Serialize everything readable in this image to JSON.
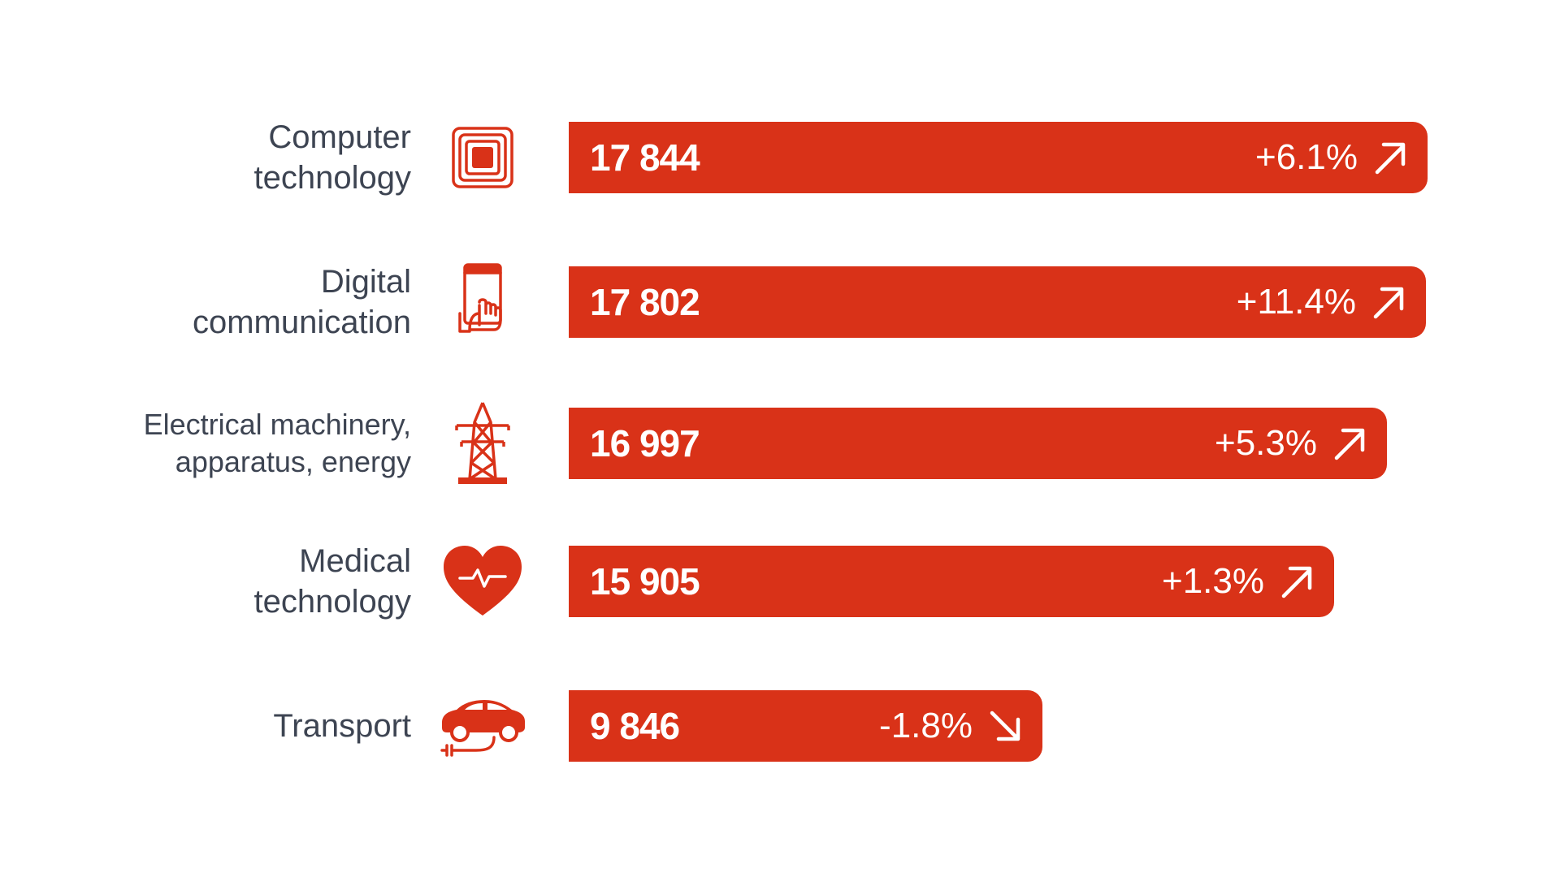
{
  "chart_data": {
    "type": "bar",
    "orientation": "horizontal",
    "categories": [
      "Computer technology",
      "Digital communication",
      "Electrical machinery, apparatus, energy",
      "Medical technology",
      "Transport"
    ],
    "label_lines": [
      [
        "Computer",
        "technology"
      ],
      [
        "Digital",
        "communication"
      ],
      [
        "Electrical machinery,",
        "apparatus, energy"
      ],
      [
        "Medical",
        "technology"
      ],
      [
        "Transport"
      ]
    ],
    "values": [
      17844,
      17802,
      16997,
      15905,
      9846
    ],
    "value_labels": [
      "17 844",
      "17 802",
      "16 997",
      "15 905",
      "9 846"
    ],
    "changes": [
      "+6.1%",
      "+11.4%",
      "+5.3%",
      "+1.3%",
      "-1.8%"
    ],
    "trend": [
      "up",
      "up",
      "up",
      "up",
      "down"
    ],
    "icons": [
      "chip-icon",
      "tablet-touch-icon",
      "power-pylon-icon",
      "heart-pulse-icon",
      "electric-car-icon"
    ],
    "xlim": [
      0,
      17844
    ],
    "grid": false,
    "bar_color": "#d93218",
    "label_color": "#3d4452"
  }
}
